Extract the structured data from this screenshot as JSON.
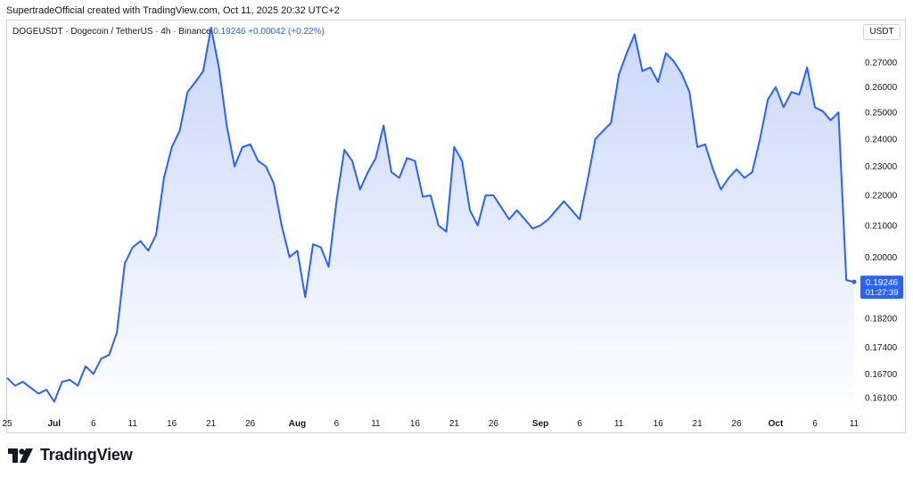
{
  "caption": "SupertradeOfficial created with TradingView.com, Oct 11, 2025 20:32 UTC+2",
  "legend": {
    "symbol": "DOGEUSDT · Dogecoin / TetherUS · 4h · Binance",
    "price": "0.19246",
    "change": "+0.00042 (+0.22%)"
  },
  "currency_button": "USDT",
  "price_label": {
    "price": "0.19246",
    "countdown": "01:27:39"
  },
  "logo_text": "TradingView",
  "colors": {
    "line": "#2962ff",
    "fill_top": "#c5d3fb",
    "fill_bottom": "#ffffff",
    "label_bg": "#2962ff",
    "axis_text": "#131722"
  },
  "chart_data": {
    "type": "area",
    "title": "DOGEUSDT · Dogecoin / TetherUS · 4h · Binance",
    "xlabel": "",
    "ylabel": "",
    "x_range": [
      "2025-06-25",
      "2025-10-11"
    ],
    "y_scale": "log",
    "ylim": [
      0.1575,
      0.2885
    ],
    "y_ticks": [
      "0.27000",
      "0.26000",
      "0.25000",
      "0.24000",
      "0.23000",
      "0.22000",
      "0.21000",
      "0.20000",
      "0.18200",
      "0.17400",
      "0.16700",
      "0.16100"
    ],
    "y_tick_values": [
      0.27,
      0.26,
      0.25,
      0.24,
      0.23,
      0.22,
      0.21,
      0.2,
      0.182,
      0.174,
      0.167,
      0.161
    ],
    "x_ticks": [
      {
        "label": "25",
        "date": "2025-06-25"
      },
      {
        "label": "Jul",
        "date": "2025-07-01"
      },
      {
        "label": "6",
        "date": "2025-07-06"
      },
      {
        "label": "11",
        "date": "2025-07-11"
      },
      {
        "label": "16",
        "date": "2025-07-16"
      },
      {
        "label": "21",
        "date": "2025-07-21"
      },
      {
        "label": "26",
        "date": "2025-07-26"
      },
      {
        "label": "Aug",
        "date": "2025-08-01"
      },
      {
        "label": "6",
        "date": "2025-08-06"
      },
      {
        "label": "11",
        "date": "2025-08-11"
      },
      {
        "label": "16",
        "date": "2025-08-16"
      },
      {
        "label": "21",
        "date": "2025-08-21"
      },
      {
        "label": "26",
        "date": "2025-08-26"
      },
      {
        "label": "Sep",
        "date": "2025-09-01"
      },
      {
        "label": "6",
        "date": "2025-09-06"
      },
      {
        "label": "11",
        "date": "2025-09-11"
      },
      {
        "label": "16",
        "date": "2025-09-16"
      },
      {
        "label": "21",
        "date": "2025-09-21"
      },
      {
        "label": "26",
        "date": "2025-09-26"
      },
      {
        "label": "Oct",
        "date": "2025-10-01"
      },
      {
        "label": "6",
        "date": "2025-10-06"
      },
      {
        "label": "11",
        "date": "2025-10-11"
      }
    ],
    "series": [
      {
        "x": [
          "2025-06-25",
          "2025-06-26",
          "2025-06-27",
          "2025-06-28",
          "2025-06-29",
          "2025-06-30",
          "2025-07-01",
          "2025-07-02",
          "2025-07-03",
          "2025-07-04",
          "2025-07-05",
          "2025-07-06",
          "2025-07-07",
          "2025-07-08",
          "2025-07-09",
          "2025-07-10",
          "2025-07-11",
          "2025-07-12",
          "2025-07-13",
          "2025-07-14",
          "2025-07-15",
          "2025-07-16",
          "2025-07-17",
          "2025-07-18",
          "2025-07-19",
          "2025-07-20",
          "2025-07-21",
          "2025-07-22",
          "2025-07-23",
          "2025-07-24",
          "2025-07-25",
          "2025-07-26",
          "2025-07-27",
          "2025-07-28",
          "2025-07-29",
          "2025-07-30",
          "2025-07-31",
          "2025-08-01",
          "2025-08-02",
          "2025-08-03",
          "2025-08-04",
          "2025-08-05",
          "2025-08-06",
          "2025-08-07",
          "2025-08-08",
          "2025-08-09",
          "2025-08-10",
          "2025-08-11",
          "2025-08-12",
          "2025-08-13",
          "2025-08-14",
          "2025-08-15",
          "2025-08-16",
          "2025-08-17",
          "2025-08-18",
          "2025-08-19",
          "2025-08-20",
          "2025-08-21",
          "2025-08-22",
          "2025-08-23",
          "2025-08-24",
          "2025-08-25",
          "2025-08-26",
          "2025-08-27",
          "2025-08-28",
          "2025-08-29",
          "2025-08-30",
          "2025-08-31",
          "2025-09-01",
          "2025-09-02",
          "2025-09-03",
          "2025-09-04",
          "2025-09-05",
          "2025-09-06",
          "2025-09-07",
          "2025-09-08",
          "2025-09-09",
          "2025-09-10",
          "2025-09-11",
          "2025-09-12",
          "2025-09-13",
          "2025-09-14",
          "2025-09-15",
          "2025-09-16",
          "2025-09-17",
          "2025-09-18",
          "2025-09-19",
          "2025-09-20",
          "2025-09-21",
          "2025-09-22",
          "2025-09-23",
          "2025-09-24",
          "2025-09-25",
          "2025-09-26",
          "2025-09-27",
          "2025-09-28",
          "2025-09-29",
          "2025-09-30",
          "2025-10-01",
          "2025-10-02",
          "2025-10-03",
          "2025-10-04",
          "2025-10-05",
          "2025-10-06",
          "2025-10-07",
          "2025-10-08",
          "2025-10-09",
          "2025-10-10",
          "2025-10-11"
        ],
        "values": [
          0.166,
          0.164,
          0.165,
          0.1635,
          0.162,
          0.163,
          0.16,
          0.165,
          0.1655,
          0.164,
          0.169,
          0.167,
          0.171,
          0.172,
          0.178,
          0.198,
          0.203,
          0.205,
          0.202,
          0.207,
          0.226,
          0.237,
          0.243,
          0.258,
          0.262,
          0.2665,
          0.285,
          0.268,
          0.245,
          0.23,
          0.237,
          0.238,
          0.232,
          0.23,
          0.224,
          0.21,
          0.2,
          0.202,
          0.188,
          0.204,
          0.203,
          0.197,
          0.218,
          0.236,
          0.232,
          0.222,
          0.228,
          0.233,
          0.245,
          0.228,
          0.226,
          0.233,
          0.232,
          0.2195,
          0.22,
          0.21,
          0.208,
          0.237,
          0.232,
          0.215,
          0.21,
          0.22,
          0.22,
          0.216,
          0.212,
          0.215,
          0.212,
          0.209,
          0.21,
          0.212,
          0.215,
          0.218,
          0.215,
          0.212,
          0.225,
          0.24,
          0.243,
          0.246,
          0.265,
          0.274,
          0.282,
          0.2665,
          0.268,
          0.262,
          0.274,
          0.2705,
          0.2655,
          0.258,
          0.237,
          0.238,
          0.229,
          0.222,
          0.226,
          0.229,
          0.226,
          0.228,
          0.24,
          0.255,
          0.26,
          0.252,
          0.258,
          0.257,
          0.268,
          0.252,
          0.2505,
          0.247,
          0.25,
          0.193,
          0.1925
        ]
      }
    ]
  }
}
